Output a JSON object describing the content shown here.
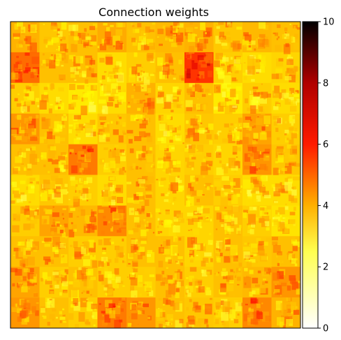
{
  "chart_data": {
    "type": "heatmap",
    "title": "Connection weights",
    "grid_rows": 10,
    "grid_cols": 10,
    "colormap": "hot_r",
    "colorbar": {
      "vmin": 0,
      "vmax": 10,
      "ticks": [
        0,
        2,
        4,
        6,
        8,
        10
      ],
      "tick_labels": [
        "0",
        "2",
        "4",
        "6",
        "8",
        "10"
      ]
    },
    "colors": {
      "low": "#ffffff",
      "mid_low": "#ffff00",
      "mid": "#ffa500",
      "mid_high": "#ff0000",
      "high": "#000000"
    },
    "tile_mean_weights": [
      [
        3.8,
        3.5,
        3.6,
        3.9,
        3.6,
        3.7,
        3.8,
        3.5,
        3.7,
        3.6
      ],
      [
        4.8,
        3.6,
        3.6,
        3.2,
        3.4,
        3.6,
        5.6,
        3.4,
        3.2,
        3.3
      ],
      [
        3.4,
        3.2,
        3.0,
        3.2,
        3.8,
        3.3,
        3.6,
        3.0,
        3.4,
        3.2
      ],
      [
        4.2,
        3.6,
        3.2,
        3.5,
        3.6,
        3.2,
        3.5,
        3.4,
        4.0,
        3.4
      ],
      [
        3.6,
        3.6,
        4.6,
        3.4,
        3.6,
        3.3,
        3.4,
        3.3,
        4.2,
        3.5
      ],
      [
        3.2,
        3.5,
        3.4,
        3.2,
        3.6,
        3.3,
        3.6,
        3.4,
        3.2,
        3.2
      ],
      [
        3.4,
        4.0,
        3.7,
        4.4,
        3.6,
        3.3,
        3.3,
        3.6,
        3.4,
        3.1
      ],
      [
        3.6,
        3.6,
        3.4,
        3.4,
        3.6,
        3.6,
        3.3,
        3.6,
        3.5,
        3.6
      ],
      [
        4.0,
        3.4,
        3.6,
        3.4,
        3.4,
        3.6,
        3.4,
        3.6,
        3.7,
        4.2
      ],
      [
        4.2,
        3.6,
        3.4,
        4.6,
        4.2,
        3.6,
        3.5,
        3.4,
        4.4,
        3.8
      ]
    ]
  }
}
